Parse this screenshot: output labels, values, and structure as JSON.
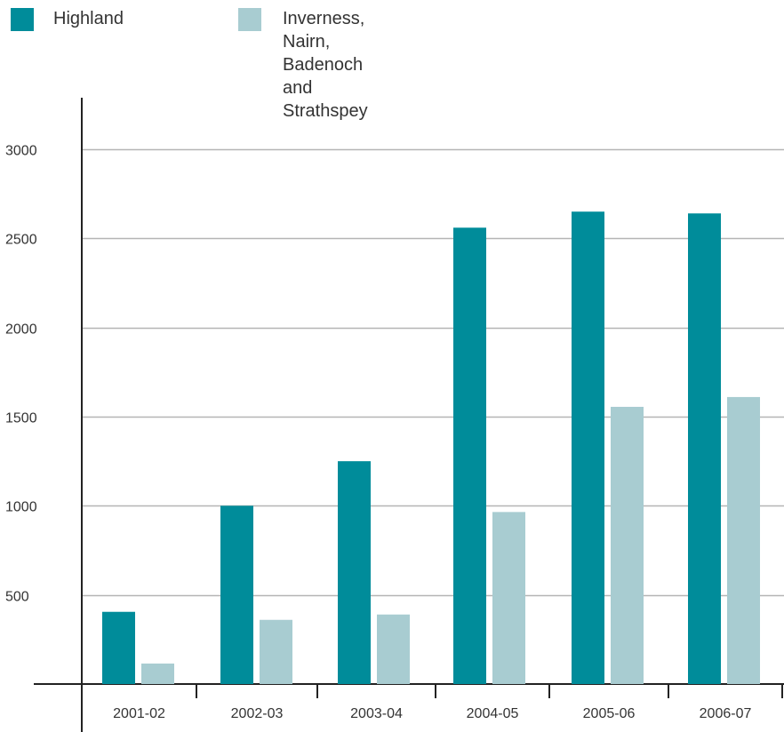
{
  "chart_data": {
    "type": "bar",
    "categories": [
      "2001-02",
      "2002-03",
      "2003-04",
      "2004-05",
      "2005-06",
      "2006-07"
    ],
    "series": [
      {
        "name": "Highland",
        "values": [
          405,
          1000,
          1250,
          2560,
          2650,
          2640
        ],
        "color": "#008c9a"
      },
      {
        "name": "Inverness, Nairn,\nBadenoch and Strathspey",
        "values": [
          115,
          360,
          390,
          965,
          1555,
          1610
        ],
        "color": "#a8ccd1"
      }
    ],
    "yticks": [
      500,
      1000,
      1500,
      2000,
      2500,
      3000
    ],
    "ylim": [
      0,
      3250
    ],
    "grid": true,
    "legend_position": "top-left",
    "title": "",
    "xlabel": "",
    "ylabel": ""
  }
}
